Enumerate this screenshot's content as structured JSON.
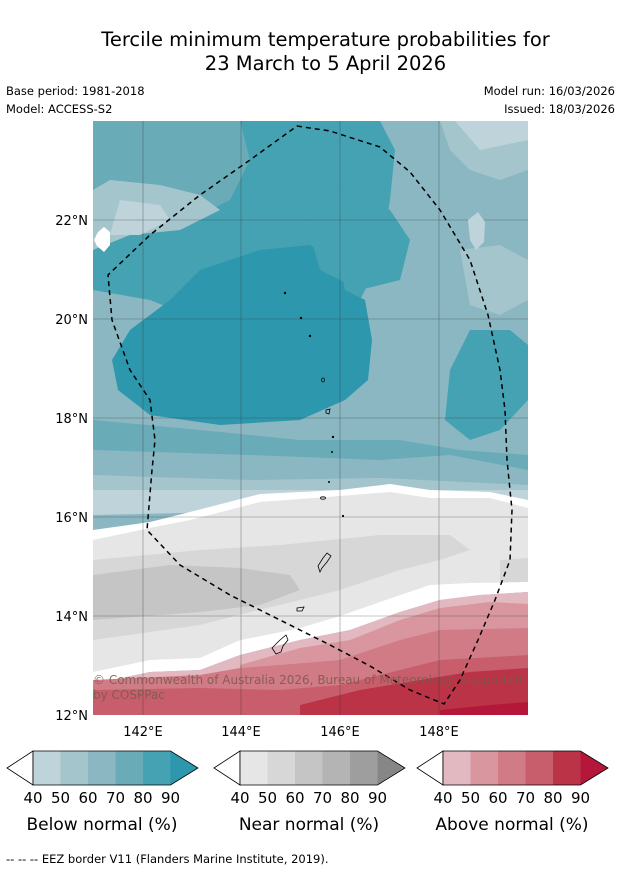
{
  "title_line1": "Tercile minimum temperature probabilities for",
  "title_line2": "23 March to 5 April 2026",
  "meta": {
    "base_period": "Base period: 1981-2018",
    "model": "Model: ACCESS-S2",
    "model_run": "Model run: 16/03/2026",
    "issued": "Issued: 18/03/2026"
  },
  "map": {
    "lat_ticks": [
      "22°N",
      "20°N",
      "18°N",
      "16°N",
      "14°N",
      "12°N"
    ],
    "lon_ticks": [
      "142°E",
      "144°E",
      "146°E",
      "148°E"
    ],
    "credit_line1": "© Commonwealth of Australia 2026, Bureau of Meteorology, supported",
    "credit_line2": "by COSPPac"
  },
  "colorbars": [
    {
      "label": "Below normal (%)",
      "ticks": [
        "40",
        "50",
        "60",
        "70",
        "80",
        "90"
      ],
      "colors": [
        "#bed3da",
        "#a5c5cd",
        "#8bb7c2",
        "#6aabb8",
        "#44a2b3",
        "#2d97ad"
      ]
    },
    {
      "label": "Near normal (%)",
      "ticks": [
        "40",
        "50",
        "60",
        "70",
        "80",
        "90"
      ],
      "colors": [
        "#e6e6e6",
        "#d7d7d7",
        "#c5c5c5",
        "#b4b4b4",
        "#9e9e9e",
        "#868686"
      ]
    },
    {
      "label": "Above normal (%)",
      "ticks": [
        "40",
        "50",
        "60",
        "70",
        "80",
        "90"
      ],
      "colors": [
        "#e3b9c1",
        "#d9969f",
        "#d17b87",
        "#c85e6c",
        "#ba3347",
        "#b5173a"
      ]
    }
  ],
  "footnote": "--  --  -- EEZ border V11 (Flanders Marine Institute, 2019)."
}
